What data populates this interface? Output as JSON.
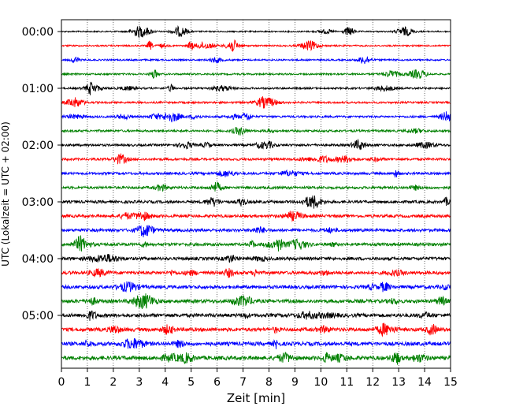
{
  "chart_data": {
    "type": "line",
    "title": "",
    "xlabel": "Zeit  [min]",
    "ylabel": "UTC (Lokalzeit = UTC + 02:00)",
    "xlim": [
      0,
      15
    ],
    "x_ticks": [
      "0",
      "1",
      "2",
      "3",
      "4",
      "5",
      "6",
      "7",
      "8",
      "9",
      "10",
      "11",
      "12",
      "13",
      "14",
      "15"
    ],
    "y_ticks": [
      "00:00",
      "01:00",
      "02:00",
      "03:00",
      "04:00",
      "05:00"
    ],
    "grid": "vertical dotted lines at each minute",
    "row_interval_minutes": 15,
    "trace_colors": [
      "#000000",
      "#ff0000",
      "#0000ff",
      "#008000"
    ],
    "rows": [
      {
        "start": "00:00",
        "color": "#000000"
      },
      {
        "start": "00:15",
        "color": "#ff0000"
      },
      {
        "start": "00:30",
        "color": "#0000ff"
      },
      {
        "start": "00:45",
        "color": "#008000"
      },
      {
        "start": "01:00",
        "color": "#000000"
      },
      {
        "start": "01:15",
        "color": "#ff0000"
      },
      {
        "start": "01:30",
        "color": "#0000ff"
      },
      {
        "start": "01:45",
        "color": "#008000"
      },
      {
        "start": "02:00",
        "color": "#000000"
      },
      {
        "start": "02:15",
        "color": "#ff0000"
      },
      {
        "start": "02:30",
        "color": "#0000ff"
      },
      {
        "start": "02:45",
        "color": "#008000"
      },
      {
        "start": "03:00",
        "color": "#000000"
      },
      {
        "start": "03:15",
        "color": "#ff0000"
      },
      {
        "start": "03:30",
        "color": "#0000ff"
      },
      {
        "start": "03:45",
        "color": "#008000"
      },
      {
        "start": "04:00",
        "color": "#000000"
      },
      {
        "start": "04:15",
        "color": "#ff0000"
      },
      {
        "start": "04:30",
        "color": "#0000ff"
      },
      {
        "start": "04:45",
        "color": "#008000"
      },
      {
        "start": "05:00",
        "color": "#000000"
      },
      {
        "start": "05:15",
        "color": "#ff0000"
      },
      {
        "start": "05:30",
        "color": "#0000ff"
      },
      {
        "start": "05:45",
        "color": "#008000"
      }
    ]
  }
}
